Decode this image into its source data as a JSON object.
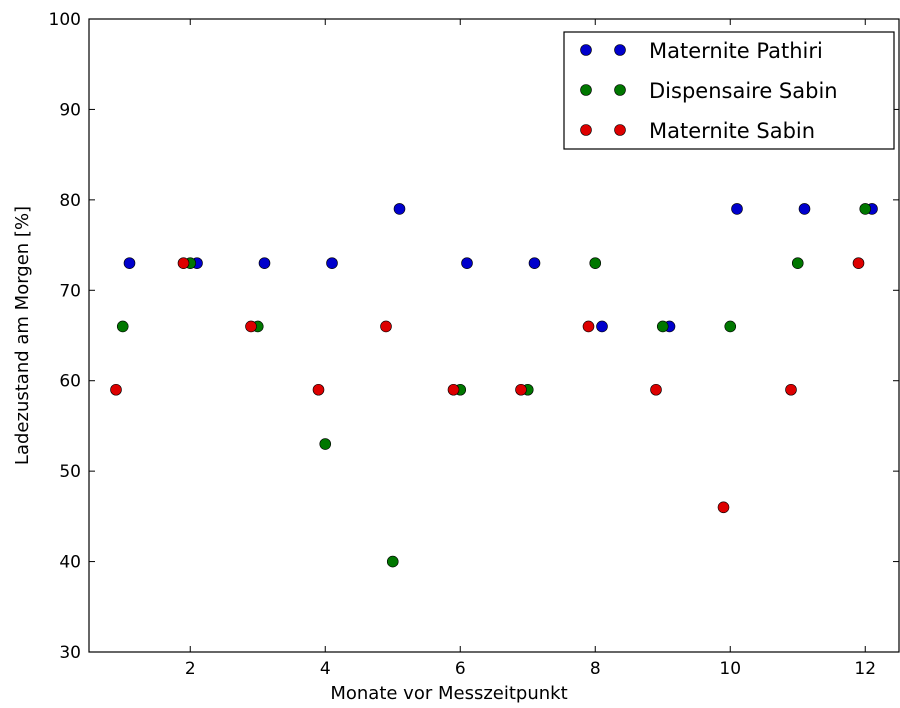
{
  "chart_data": {
    "type": "scatter",
    "xlabel": "Monate vor Messzeitpunkt",
    "ylabel": "Ladezustand am Morgen [%]",
    "xlim": [
      0.5,
      12.5
    ],
    "ylim": [
      30,
      100
    ],
    "xticks": [
      2,
      4,
      6,
      8,
      10,
      12
    ],
    "yticks": [
      30,
      40,
      50,
      60,
      70,
      80,
      90,
      100
    ],
    "grid": false,
    "legend": "top-right",
    "series": [
      {
        "name": "Maternite Pathiri",
        "color": "#0000cc",
        "points": [
          [
            1.1,
            73
          ],
          [
            2.1,
            73
          ],
          [
            3.1,
            73
          ],
          [
            4.1,
            73
          ],
          [
            5.1,
            79
          ],
          [
            6.1,
            73
          ],
          [
            7.1,
            73
          ],
          [
            8.1,
            66
          ],
          [
            9.1,
            66
          ],
          [
            10.1,
            79
          ],
          [
            11.1,
            79
          ],
          [
            12.1,
            79
          ]
        ]
      },
      {
        "name": "Dispensaire Sabin",
        "color": "#007700",
        "points": [
          [
            1.0,
            66
          ],
          [
            2.0,
            73
          ],
          [
            3.0,
            66
          ],
          [
            4.0,
            53
          ],
          [
            5.0,
            40
          ],
          [
            6.0,
            59
          ],
          [
            7.0,
            59
          ],
          [
            8.0,
            73
          ],
          [
            9.0,
            66
          ],
          [
            10.0,
            66
          ],
          [
            11.0,
            73
          ],
          [
            12.0,
            79
          ]
        ]
      },
      {
        "name": "Maternite Sabin",
        "color": "#dd0000",
        "points": [
          [
            0.9,
            59
          ],
          [
            1.9,
            73
          ],
          [
            2.9,
            66
          ],
          [
            3.9,
            59
          ],
          [
            4.9,
            66
          ],
          [
            5.9,
            59
          ],
          [
            6.9,
            59
          ],
          [
            7.9,
            66
          ],
          [
            8.9,
            59
          ],
          [
            9.9,
            46
          ],
          [
            10.9,
            59
          ],
          [
            11.9,
            73
          ]
        ]
      }
    ]
  }
}
